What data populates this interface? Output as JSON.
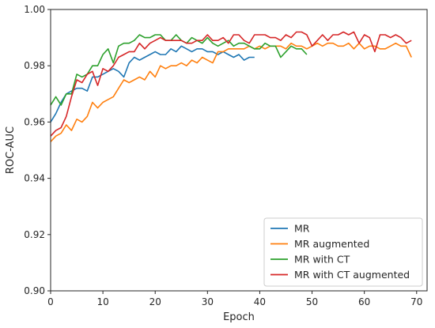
{
  "chart_data": {
    "type": "line",
    "title": "",
    "xlabel": "Epoch",
    "ylabel": "ROC-AUC",
    "xlim": [
      0,
      72
    ],
    "ylim": [
      0.9,
      1.0
    ],
    "xticks": [
      "0",
      "10",
      "20",
      "30",
      "40",
      "50",
      "60",
      "70"
    ],
    "yticks": [
      "0.90",
      "0.92",
      "0.94",
      "0.96",
      "0.98",
      "1.00"
    ],
    "grid": false,
    "legend_position": "lower-right",
    "series": [
      {
        "name": "MR",
        "color": "#1f77b4",
        "x": [
          0,
          1,
          2,
          3,
          4,
          5,
          6,
          7,
          8,
          9,
          10,
          11,
          12,
          13,
          14,
          15,
          16,
          17,
          18,
          19,
          20,
          21,
          22,
          23,
          24,
          25,
          26,
          27,
          28,
          29,
          30,
          31,
          32,
          33,
          34,
          35,
          36,
          37,
          38,
          39
        ],
        "values": [
          0.96,
          0.963,
          0.967,
          0.97,
          0.971,
          0.972,
          0.972,
          0.971,
          0.976,
          0.976,
          0.977,
          0.978,
          0.979,
          0.978,
          0.976,
          0.981,
          0.983,
          0.982,
          0.983,
          0.984,
          0.985,
          0.984,
          0.984,
          0.986,
          0.985,
          0.987,
          0.986,
          0.985,
          0.986,
          0.986,
          0.985,
          0.985,
          0.984,
          0.985,
          0.984,
          0.983,
          0.984,
          0.982,
          0.983,
          0.983
        ]
      },
      {
        "name": "MR augmented",
        "color": "#ff7f0e",
        "x": [
          0,
          1,
          2,
          3,
          4,
          5,
          6,
          7,
          8,
          9,
          10,
          11,
          12,
          13,
          14,
          15,
          16,
          17,
          18,
          19,
          20,
          21,
          22,
          23,
          24,
          25,
          26,
          27,
          28,
          29,
          30,
          31,
          32,
          33,
          34,
          35,
          36,
          37,
          38,
          39,
          40,
          41,
          42,
          43,
          44,
          45,
          46,
          47,
          48,
          49,
          50,
          51,
          52,
          53,
          54,
          55,
          56,
          57,
          58,
          59,
          60,
          61,
          62,
          63,
          64,
          65,
          66,
          67,
          68,
          69
        ],
        "values": [
          0.953,
          0.955,
          0.956,
          0.959,
          0.957,
          0.961,
          0.96,
          0.962,
          0.967,
          0.965,
          0.967,
          0.968,
          0.969,
          0.972,
          0.975,
          0.974,
          0.975,
          0.976,
          0.975,
          0.978,
          0.976,
          0.98,
          0.979,
          0.98,
          0.98,
          0.981,
          0.98,
          0.982,
          0.981,
          0.983,
          0.982,
          0.981,
          0.985,
          0.985,
          0.986,
          0.986,
          0.986,
          0.986,
          0.987,
          0.986,
          0.987,
          0.986,
          0.987,
          0.987,
          0.987,
          0.986,
          0.988,
          0.987,
          0.987,
          0.986,
          0.987,
          0.988,
          0.987,
          0.988,
          0.988,
          0.987,
          0.987,
          0.988,
          0.986,
          0.988,
          0.986,
          0.987,
          0.987,
          0.986,
          0.986,
          0.987,
          0.988,
          0.987,
          0.987,
          0.983
        ]
      },
      {
        "name": "MR with CT",
        "color": "#2ca02c",
        "x": [
          0,
          1,
          2,
          3,
          4,
          5,
          6,
          7,
          8,
          9,
          10,
          11,
          12,
          13,
          14,
          15,
          16,
          17,
          18,
          19,
          20,
          21,
          22,
          23,
          24,
          25,
          26,
          27,
          28,
          29,
          30,
          31,
          32,
          33,
          34,
          35,
          36,
          37,
          38,
          39,
          40,
          41,
          42,
          43,
          44,
          45,
          46,
          47,
          48,
          49
        ],
        "values": [
          0.966,
          0.969,
          0.966,
          0.97,
          0.97,
          0.977,
          0.976,
          0.977,
          0.98,
          0.98,
          0.984,
          0.986,
          0.981,
          0.987,
          0.988,
          0.988,
          0.989,
          0.991,
          0.99,
          0.99,
          0.991,
          0.991,
          0.989,
          0.989,
          0.991,
          0.989,
          0.988,
          0.99,
          0.989,
          0.988,
          0.99,
          0.988,
          0.987,
          0.988,
          0.989,
          0.987,
          0.988,
          0.988,
          0.987,
          0.986,
          0.986,
          0.988,
          0.987,
          0.987,
          0.983,
          0.985,
          0.987,
          0.986,
          0.986,
          0.984
        ]
      },
      {
        "name": "MR with CT augmented",
        "color": "#d62728",
        "x": [
          0,
          1,
          2,
          3,
          4,
          5,
          6,
          7,
          8,
          9,
          10,
          11,
          12,
          13,
          14,
          15,
          16,
          17,
          18,
          19,
          20,
          21,
          22,
          23,
          24,
          25,
          26,
          27,
          28,
          29,
          30,
          31,
          32,
          33,
          34,
          35,
          36,
          37,
          38,
          39,
          40,
          41,
          42,
          43,
          44,
          45,
          46,
          47,
          48,
          49,
          50,
          51,
          52,
          53,
          54,
          55,
          56,
          57,
          58,
          59,
          60,
          61,
          62,
          63,
          64,
          65,
          66,
          67,
          68,
          69
        ],
        "values": [
          0.955,
          0.957,
          0.958,
          0.962,
          0.969,
          0.975,
          0.974,
          0.977,
          0.978,
          0.973,
          0.979,
          0.978,
          0.98,
          0.983,
          0.984,
          0.985,
          0.985,
          0.988,
          0.986,
          0.988,
          0.989,
          0.99,
          0.989,
          0.989,
          0.989,
          0.989,
          0.988,
          0.988,
          0.989,
          0.989,
          0.991,
          0.989,
          0.989,
          0.99,
          0.988,
          0.991,
          0.991,
          0.989,
          0.988,
          0.991,
          0.991,
          0.991,
          0.99,
          0.99,
          0.989,
          0.991,
          0.99,
          0.992,
          0.992,
          0.991,
          0.987,
          0.989,
          0.991,
          0.989,
          0.991,
          0.991,
          0.992,
          0.991,
          0.992,
          0.988,
          0.991,
          0.99,
          0.985,
          0.991,
          0.991,
          0.99,
          0.991,
          0.99,
          0.988,
          0.989
        ]
      }
    ]
  }
}
